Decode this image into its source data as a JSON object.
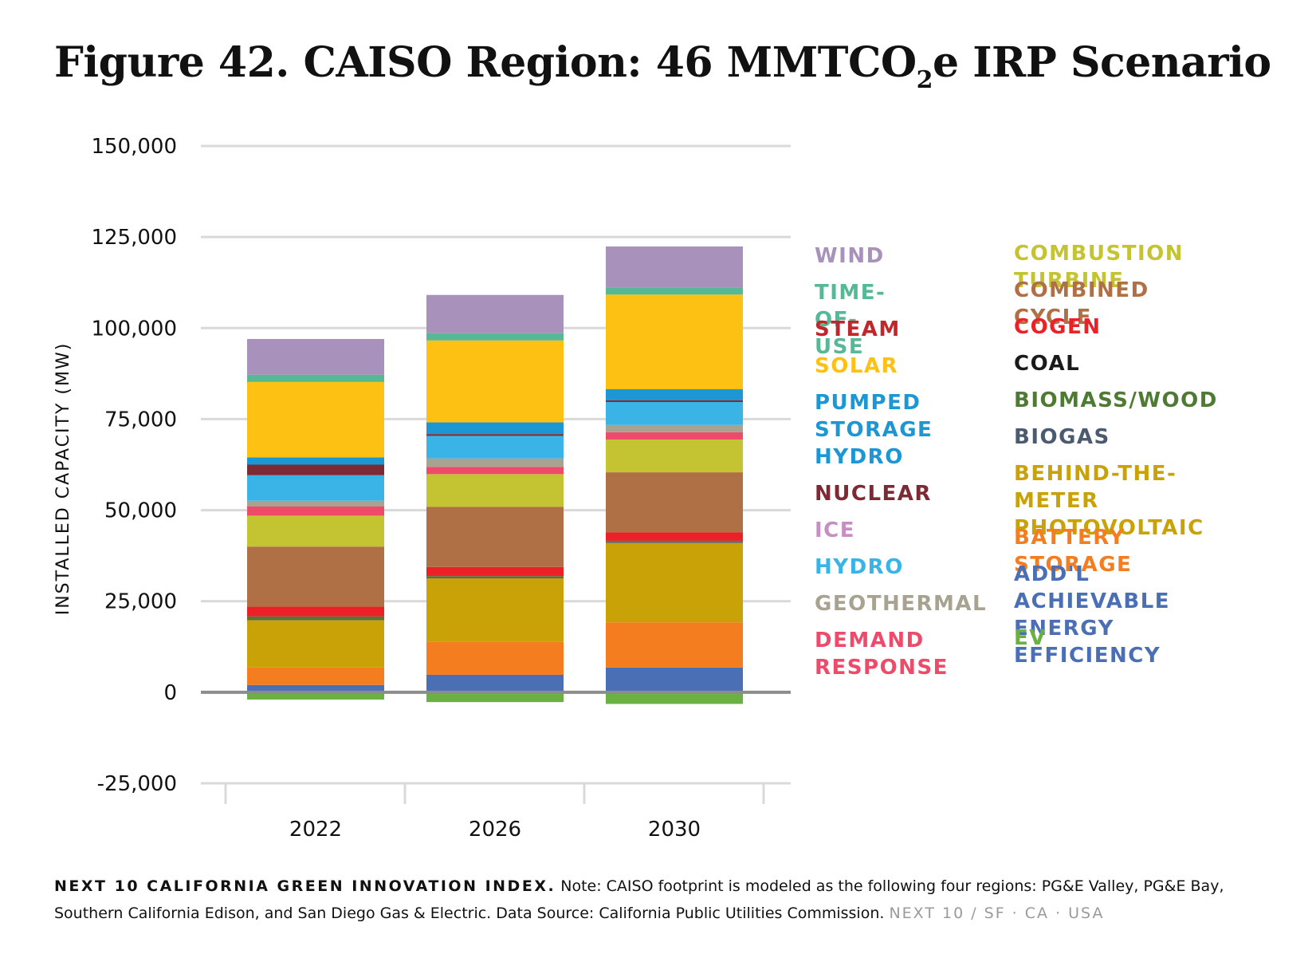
{
  "title_main": "Figure 42. CAISO Region: 46 MMTCO",
  "title_sub": "2",
  "title_tail": "e IRP Scenario",
  "footer": {
    "brand": "NEXT 10 CALIFORNIA GREEN INNOVATION INDEX.",
    "note": " Note: CAISO footprint is modeled as the following four regions: PG&E Valley, PG&E Bay, Southern California Edison, and San Diego Gas & Electric. Data Source: California Public Utilities Commission. ",
    "tag": "NEXT 10  /  SF · CA · USA"
  },
  "chart_data": {
    "type": "bar",
    "stacked": true,
    "ylabel": "INSTALLED CAPACITY (MW)",
    "ylim": [
      -25000,
      150000
    ],
    "yticks": [
      -25000,
      0,
      25000,
      50000,
      75000,
      100000,
      125000,
      150000
    ],
    "ytick_labels": [
      "-25,000",
      "0",
      "25,000",
      "50,000",
      "75,000",
      "100,000",
      "125,000",
      "150,000"
    ],
    "categories": [
      "2022",
      "2026",
      "2030"
    ],
    "grid": true,
    "legend_position": "right",
    "series": [
      {
        "name": "EV",
        "color": "#6ab043",
        "values": [
          -2000,
          -2700,
          -3200
        ]
      },
      {
        "name": "ADD'L ACHIEVABLE ENERGY EFFICIENCY",
        "color": "#4a6fb5",
        "values": [
          2000,
          4800,
          6800
        ]
      },
      {
        "name": "BATTERY STORAGE",
        "color": "#f47d20",
        "values": [
          4800,
          9000,
          12400
        ]
      },
      {
        "name": "BEHIND-THE-METER PHOTOVOLTAIC",
        "color": "#c9a207",
        "values": [
          13000,
          17500,
          21800
        ]
      },
      {
        "name": "BIOGAS",
        "color": "#4b5a6e",
        "values": [
          300,
          300,
          300
        ]
      },
      {
        "name": "BIOMASS/WOOD",
        "color": "#4f7a34",
        "values": [
          700,
          300,
          300
        ]
      },
      {
        "name": "COAL",
        "color": "#1a1a1a",
        "values": [
          0,
          0,
          0
        ]
      },
      {
        "name": "COGEN",
        "color": "#ec2027",
        "values": [
          2700,
          2500,
          2300
        ]
      },
      {
        "name": "COMBINED CYCLE",
        "color": "#b07045",
        "values": [
          16500,
          16500,
          16500
        ]
      },
      {
        "name": "COMBUSTION TURBINE",
        "color": "#c4c432",
        "values": [
          8500,
          9000,
          9000
        ]
      },
      {
        "name": "DEMAND RESPONSE",
        "color": "#ee4a6a",
        "values": [
          2500,
          2000,
          2000
        ]
      },
      {
        "name": "GEOTHERMAL",
        "color": "#a8a390",
        "values": [
          1600,
          2300,
          2000
        ]
      },
      {
        "name": "HYDRO",
        "color": "#3ab4e6",
        "values": [
          7000,
          6200,
          6300
        ]
      },
      {
        "name": "ICE",
        "color": "#c68fc4",
        "values": [
          0,
          0,
          0
        ]
      },
      {
        "name": "NUCLEAR",
        "color": "#7d2a35",
        "values": [
          2900,
          500,
          500
        ]
      },
      {
        "name": "PUMPED STORAGE HYDRO",
        "color": "#1c97d4",
        "values": [
          2000,
          3200,
          3000
        ]
      },
      {
        "name": "SOLAR",
        "color": "#fcc112",
        "values": [
          20700,
          22500,
          26000
        ]
      },
      {
        "name": "STEAM",
        "color": "#c0272d",
        "values": [
          0,
          0,
          0
        ]
      },
      {
        "name": "TIME-OF-USE",
        "color": "#56b894",
        "values": [
          2000,
          2000,
          2000
        ]
      },
      {
        "name": "WIND",
        "color": "#a892bb",
        "values": [
          9800,
          10500,
          11200
        ]
      }
    ],
    "legend": {
      "left": [
        {
          "label": "WIND",
          "color": "#a892bb"
        },
        {
          "label": "TIME-OF-USE",
          "color": "#56b894"
        },
        {
          "label": "STEAM",
          "color": "#c0272d"
        },
        {
          "label": "SOLAR",
          "color": "#fcc112"
        },
        {
          "label": "PUMPED\nSTORAGE\nHYDRO",
          "color": "#1c97d4"
        },
        {
          "label": "NUCLEAR",
          "color": "#7d2a35"
        },
        {
          "label": "ICE",
          "color": "#c68fc4"
        },
        {
          "label": "HYDRO",
          "color": "#3ab4e6"
        },
        {
          "label": "GEOTHERMAL",
          "color": "#a8a390"
        },
        {
          "label": "DEMAND\nRESPONSE",
          "color": "#ee4a6a"
        }
      ],
      "right": [
        {
          "label": "COMBUSTION TURBINE",
          "color": "#c4c432"
        },
        {
          "label": "COMBINED CYCLE",
          "color": "#b07045"
        },
        {
          "label": "COGEN",
          "color": "#ec2027"
        },
        {
          "label": "COAL",
          "color": "#1a1a1a"
        },
        {
          "label": "BIOMASS/WOOD",
          "color": "#4f7a34"
        },
        {
          "label": "BIOGAS",
          "color": "#4b5a6e"
        },
        {
          "label": "BEHIND-THE-METER\nPHOTOVOLTAIC",
          "color": "#c9a207"
        },
        {
          "label": "BATTERY STORAGE",
          "color": "#f47d20"
        },
        {
          "label": "ADD'L ACHIEVABLE\nENERGY EFFICIENCY",
          "color": "#4a6fb5"
        },
        {
          "label": "EV",
          "color": "#6ab043"
        }
      ]
    }
  }
}
